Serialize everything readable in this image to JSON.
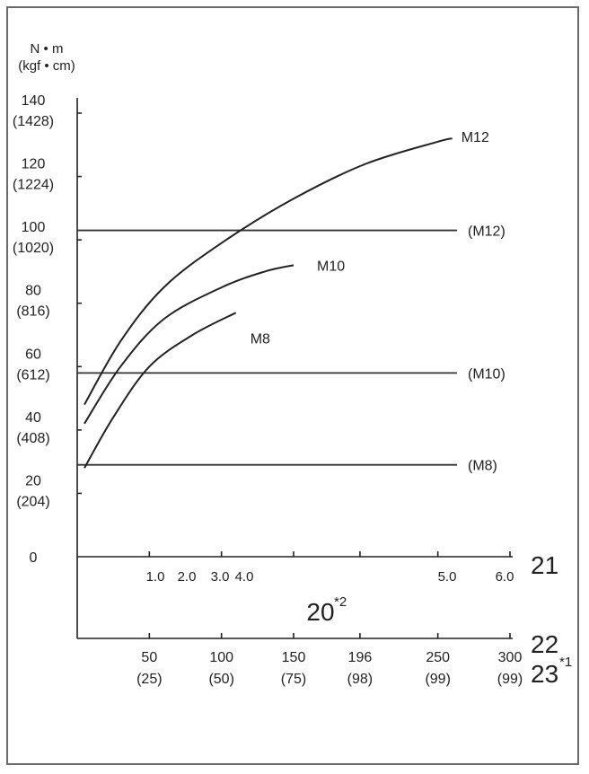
{
  "chart_data": {
    "type": "line",
    "y_unit": [
      "N • m",
      "(kgf • cm)"
    ],
    "y_ticks": [
      {
        "value": 0,
        "label": "0",
        "sub": ""
      },
      {
        "value": 20,
        "label": "20",
        "sub": "(204)"
      },
      {
        "value": 40,
        "label": "40",
        "sub": "(408)"
      },
      {
        "value": 60,
        "label": "60",
        "sub": "(612)"
      },
      {
        "value": 80,
        "label": "80",
        "sub": "(816)"
      },
      {
        "value": 100,
        "label": "100",
        "sub": "(1020)"
      },
      {
        "value": 120,
        "label": "120",
        "sub": "(1224)"
      },
      {
        "value": 140,
        "label": "140",
        "sub": "(1428)"
      }
    ],
    "ylim": [
      0,
      140
    ],
    "axis_21": {
      "label": "21",
      "ticks": [
        "1.0",
        "2.0",
        "3.0",
        "4.0",
        "5.0",
        "6.0"
      ]
    },
    "axis_20": {
      "label": "20",
      "note": "*2"
    },
    "axis_22": {
      "label": "22",
      "ticks": [
        "50",
        "100",
        "150",
        "196",
        "250",
        "300"
      ]
    },
    "axis_23": {
      "label": "23",
      "note": "*1",
      "ticks": [
        "(25)",
        "(50)",
        "(75)",
        "(98)",
        "(99)",
        "(99)"
      ]
    },
    "x_range_22": [
      0,
      300
    ],
    "series": [
      {
        "name": "M12",
        "points": [
          [
            5,
            48
          ],
          [
            30,
            68
          ],
          [
            60,
            85
          ],
          [
            100,
            99
          ],
          [
            150,
            113
          ],
          [
            200,
            124
          ],
          [
            250,
            131
          ],
          [
            260,
            132
          ]
        ]
      },
      {
        "name": "M10",
        "points": [
          [
            5,
            42
          ],
          [
            30,
            60
          ],
          [
            60,
            75
          ],
          [
            100,
            85
          ],
          [
            130,
            90
          ],
          [
            150,
            92
          ]
        ]
      },
      {
        "name": "M8",
        "points": [
          [
            5,
            28
          ],
          [
            25,
            44
          ],
          [
            50,
            60
          ],
          [
            80,
            70
          ],
          [
            110,
            77
          ]
        ]
      }
    ],
    "limits": [
      {
        "name": "(M12)",
        "value": 103
      },
      {
        "name": "(M10)",
        "value": 58
      },
      {
        "name": "(M8)",
        "value": 29
      }
    ]
  }
}
